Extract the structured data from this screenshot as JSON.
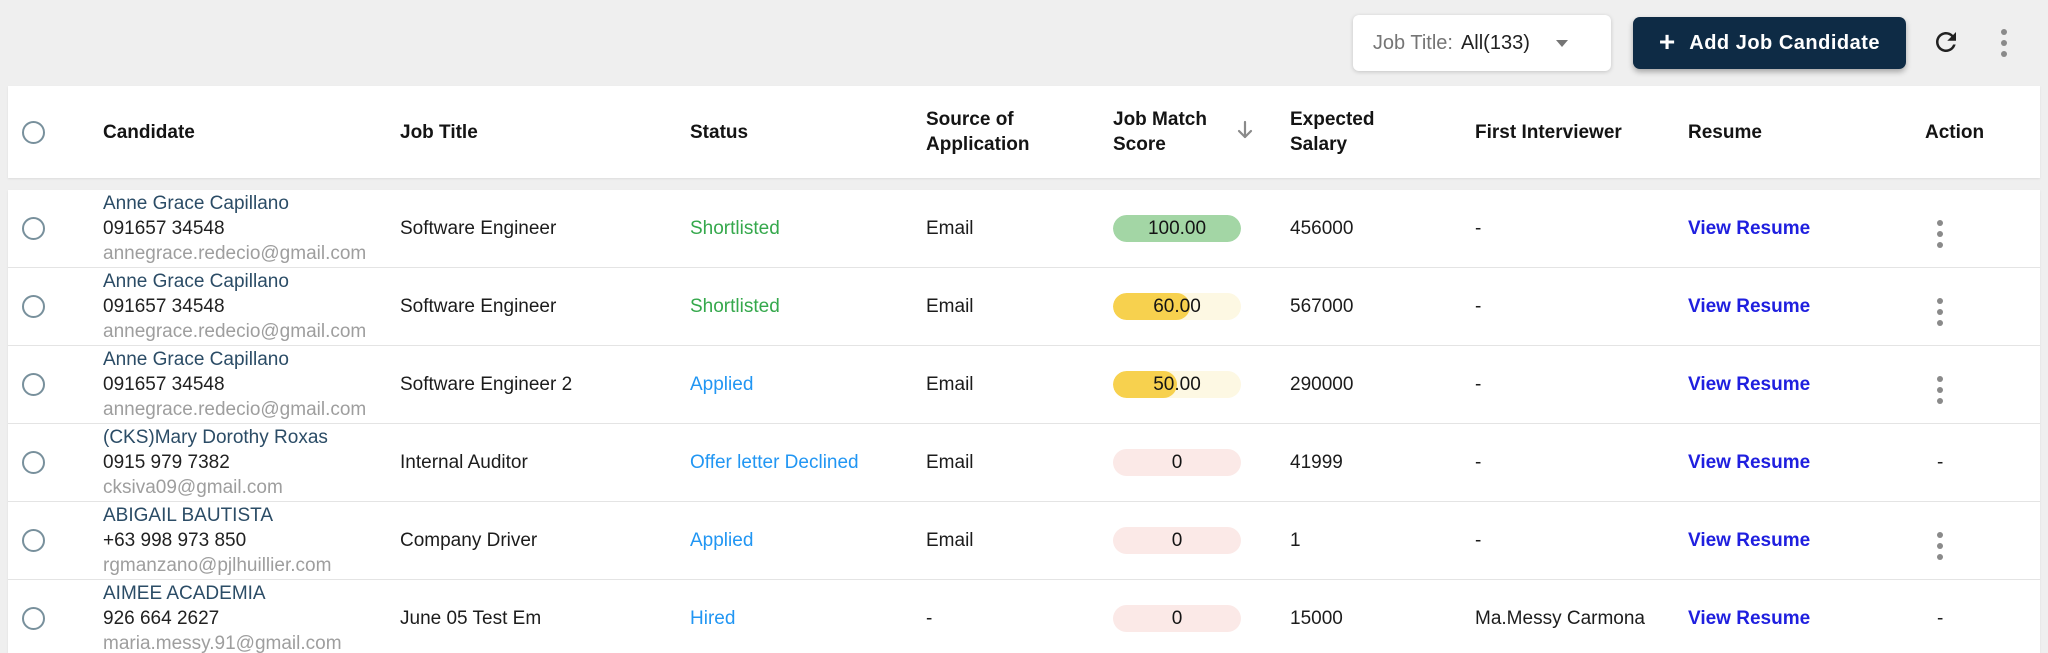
{
  "colors": {
    "accent_navy": "#0e2b45",
    "link_blue": "#1f1fdf",
    "status_green": "#35a84c",
    "status_blue": "#2196f3",
    "candidate_name_blue": "#2b4c66",
    "pill_green_fill": "#a3d6a5",
    "pill_yellow_fill": "#f7d14e",
    "pill_yellow_track": "#fdf8e3",
    "pill_red_track": "#fbe9e7"
  },
  "toolbar": {
    "job_title_filter_label": "Job Title:",
    "job_title_filter_value": "All(133)",
    "add_candidate_label": "Add Job Candidate",
    "add_candidate_plus": "+",
    "icons": [
      "chevron-down-icon",
      "refresh-icon",
      "kebab-menu-icon"
    ]
  },
  "table": {
    "headers": {
      "candidate": "Candidate",
      "job_title": "Job Title",
      "status": "Status",
      "source": "Source of Application",
      "score": "Job Match Score",
      "salary": "Expected Salary",
      "interviewer": "First Interviewer",
      "resume": "Resume",
      "action": "Action"
    },
    "sort": {
      "column": "Job Match Score",
      "direction": "desc"
    },
    "resume_link_label": "View Resume",
    "rows": [
      {
        "name": "Anne Grace Capillano",
        "phone": "091657 34548",
        "email": "annegrace.redecio@gmail.com",
        "job_title": "Software Engineer",
        "status": "Shortlisted",
        "status_color": "green",
        "source": "Email",
        "score_label": "100.00",
        "score_pct": 100,
        "score_color": "green",
        "salary": "456000",
        "interviewer": "-",
        "action": "menu"
      },
      {
        "name": "Anne Grace Capillano",
        "phone": "091657 34548",
        "email": "annegrace.redecio@gmail.com",
        "job_title": "Software Engineer",
        "status": "Shortlisted",
        "status_color": "green",
        "source": "Email",
        "score_label": "60.00",
        "score_pct": 60,
        "score_color": "yellow",
        "salary": "567000",
        "interviewer": "-",
        "action": "menu"
      },
      {
        "name": "Anne Grace Capillano",
        "phone": "091657 34548",
        "email": "annegrace.redecio@gmail.com",
        "job_title": "Software Engineer 2",
        "status": "Applied",
        "status_color": "blue",
        "source": "Email",
        "score_label": "50.00",
        "score_pct": 50,
        "score_color": "yellow",
        "salary": "290000",
        "interviewer": "-",
        "action": "menu"
      },
      {
        "name": "(CKS)Mary Dorothy Roxas",
        "phone": "0915 979 7382",
        "email": "cksiva09@gmail.com",
        "job_title": "Internal Auditor",
        "status": "Offer letter Declined",
        "status_color": "blue",
        "source": "Email",
        "score_label": "0",
        "score_pct": 0,
        "score_color": "red",
        "salary": "41999",
        "interviewer": "-",
        "action": "-"
      },
      {
        "name": "ABIGAIL BAUTISTA",
        "phone": "+63 998 973 850",
        "email": "rgmanzano@pjlhuillier.com",
        "job_title": "Company Driver",
        "status": "Applied",
        "status_color": "blue",
        "source": "Email",
        "score_label": "0",
        "score_pct": 0,
        "score_color": "red",
        "salary": "1",
        "interviewer": "-",
        "action": "menu"
      },
      {
        "name": "AIMEE ACADEMIA",
        "phone": "926 664 2627",
        "email": "maria.messy.91@gmail.com",
        "job_title": "June 05 Test Em",
        "status": "Hired",
        "status_color": "blue",
        "source": "-",
        "score_label": "0",
        "score_pct": 0,
        "score_color": "red",
        "salary": "15000",
        "interviewer": "Ma.Messy Carmona",
        "action": "-"
      }
    ]
  }
}
